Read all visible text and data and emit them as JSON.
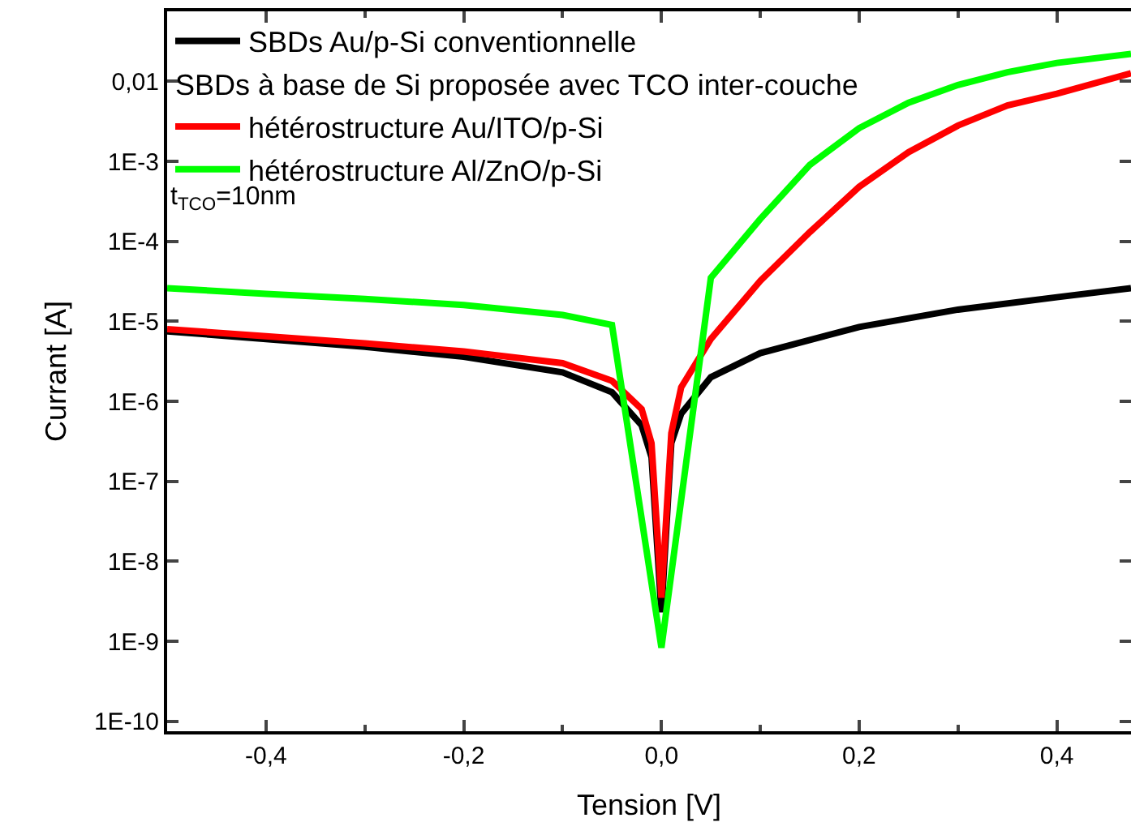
{
  "chart_data": {
    "type": "line",
    "xlabel": "Tension [V]",
    "ylabel": "Currant [A]",
    "log": "y",
    "legend": "top left",
    "legend_title": "SBDs à base de Si proposée avec TCO inter-couche",
    "grid": false,
    "marker": "none",
    "line_style": "solid",
    "xlim": [
      -0.5,
      0.475
    ],
    "xticks": [
      {
        "value": -0.4,
        "label": "-0,4"
      },
      {
        "value": -0.2,
        "label": "-0,2"
      },
      {
        "value": 0,
        "label": "0,0"
      },
      {
        "value": 0.2,
        "label": "0,2"
      },
      {
        "value": 0.4,
        "label": "0,4"
      }
    ],
    "ylim": [
      7.5e-11,
      0.075
    ],
    "yticks": [
      {
        "value": 1e-10,
        "label": "1E-10"
      },
      {
        "value": 1e-09,
        "label": "1E-9"
      },
      {
        "value": 1e-08,
        "label": "1E-8"
      },
      {
        "value": 1e-07,
        "label": "1E-7"
      },
      {
        "value": 1e-06,
        "label": "1E-6"
      },
      {
        "value": 1e-05,
        "label": "1E-5"
      },
      {
        "value": 0.0001,
        "label": "1E-4"
      },
      {
        "value": 0.001,
        "label": "1E-3"
      },
      {
        "value": 0.01,
        "label": "0,01"
      }
    ],
    "annotations": [
      "t$_{TCO}$=10nm"
    ],
    "series": [
      {
        "name": "SBDs Au/p-Si conventionnelle",
        "color": "#000000",
        "x": [
          -0.5,
          -0.4,
          -0.3,
          -0.2,
          -0.1,
          -0.05,
          -0.02,
          -0.01,
          0,
          0.01,
          0.02,
          0.05,
          0.1,
          0.2,
          0.3,
          0.4,
          0.475
        ],
        "values": [
          7.5e-06,
          6e-06,
          4.8e-06,
          3.6e-06,
          2.3e-06,
          1.3e-06,
          5e-07,
          2e-07,
          2.3e-09,
          3e-07,
          7e-07,
          2e-06,
          4e-06,
          8.5e-06,
          1.4e-05,
          2e-05,
          2.6e-05
        ]
      },
      {
        "name": "hétérostructure Au/ITO/p-Si",
        "color": "#ff0000",
        "x": [
          -0.5,
          -0.4,
          -0.3,
          -0.2,
          -0.1,
          -0.05,
          -0.02,
          -0.01,
          0,
          0.01,
          0.02,
          0.05,
          0.1,
          0.15,
          0.2,
          0.25,
          0.3,
          0.35,
          0.4,
          0.475
        ],
        "values": [
          8e-06,
          6.5e-06,
          5.3e-06,
          4.2e-06,
          3e-06,
          1.8e-06,
          8e-07,
          3e-07,
          3.5e-09,
          4e-07,
          1.5e-06,
          6e-06,
          3.2e-05,
          0.00013,
          0.00048,
          0.0013,
          0.0028,
          0.005,
          0.007,
          0.0126
        ]
      },
      {
        "name": "hétérostructure Al/ZnO/p-Si",
        "color": "#00ff00",
        "x": [
          -0.5,
          -0.4,
          -0.3,
          -0.2,
          -0.1,
          -0.05,
          0,
          0.05,
          0.1,
          0.15,
          0.2,
          0.25,
          0.3,
          0.35,
          0.4,
          0.475
        ],
        "values": [
          2.6e-05,
          2.2e-05,
          1.9e-05,
          1.6e-05,
          1.2e-05,
          9e-06,
          8.3e-10,
          3.5e-05,
          0.00019,
          0.0009,
          0.0026,
          0.0054,
          0.009,
          0.013,
          0.017,
          0.022
        ]
      }
    ]
  }
}
